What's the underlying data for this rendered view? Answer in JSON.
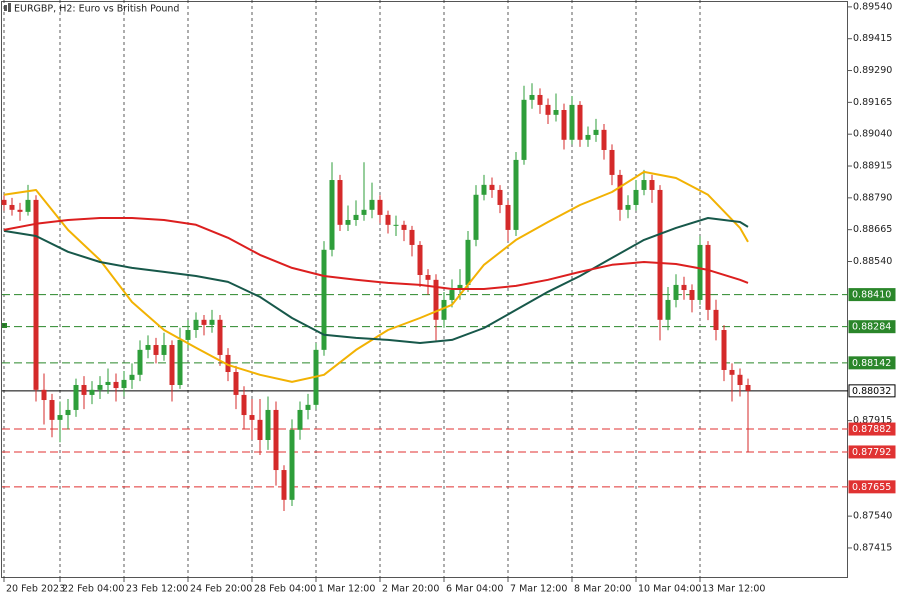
{
  "chart_data": {
    "type": "candlestick",
    "title": "EURGBP, H2:  Euro vs British Pound",
    "up_color": "#2e9e3a",
    "down_color": "#d42a2a",
    "open": [
      0.88782,
      0.88762,
      0.88743,
      0.88735,
      0.88782,
      0.88036,
      0.87996,
      0.87918,
      0.87937,
      0.87957,
      0.88055,
      0.88016,
      0.88036,
      0.88055,
      0.88067,
      0.88043,
      0.88075,
      0.88095,
      0.88193,
      0.88212,
      0.88173,
      0.88212,
      0.88055,
      0.88232,
      0.88271,
      0.88311,
      0.88291,
      0.88311,
      0.88173,
      0.88106,
      0.88016,
      0.87937,
      0.87918,
      0.87839,
      0.87957,
      0.87721,
      0.87604,
      0.87879,
      0.87957,
      0.87977,
      0.88193,
      0.88586,
      0.8886,
      0.88684,
      0.88703,
      0.88723,
      0.88743,
      0.88782,
      0.88723,
      0.88684,
      0.88684,
      0.88664,
      0.88605,
      0.88487,
      0.88468,
      0.88311,
      0.88389,
      0.88428,
      0.88448,
      0.88625,
      0.88802,
      0.88841,
      0.88821,
      0.88762,
      0.88664,
      0.88939,
      0.89175,
      0.89194,
      0.89155,
      0.89116,
      0.89135,
      0.89018,
      0.89155,
      0.89018,
      0.89037,
      0.89057,
      0.88978,
      0.8888,
      0.88743,
      0.88762,
      0.88821,
      0.8886,
      0.88821,
      0.88311,
      0.88389,
      0.88448,
      0.88428,
      0.88389,
      0.88605,
      0.8835,
      0.88271,
      0.88114,
      0.88095,
      0.88055
    ],
    "high": [
      0.888,
      0.8879,
      0.8877,
      0.88841,
      0.888,
      0.881,
      0.8802,
      0.8799,
      0.88,
      0.8808,
      0.8809,
      0.8807,
      0.8809,
      0.8812,
      0.881,
      0.8811,
      0.8814,
      0.8823,
      0.8825,
      0.8824,
      0.8826,
      0.8823,
      0.8828,
      0.8831,
      0.8834,
      0.8833,
      0.8835,
      0.8833,
      0.882,
      0.8813,
      0.8805,
      0.88,
      0.88,
      0.8801,
      0.8799,
      0.8774,
      0.8792,
      0.8799,
      0.8802,
      0.8822,
      0.8862,
      0.8893,
      0.8888,
      0.8876,
      0.8878,
      0.8893,
      0.8885,
      0.888,
      0.8874,
      0.8872,
      0.887,
      0.8868,
      0.8862,
      0.8851,
      0.8849,
      0.8842,
      0.8847,
      0.8851,
      0.8866,
      0.8884,
      0.8888,
      0.8887,
      0.8884,
      0.8878,
      0.8897,
      0.8923,
      0.8924,
      0.8922,
      0.8918,
      0.892,
      0.8916,
      0.8919,
      0.8917,
      0.8907,
      0.891,
      0.8908,
      0.89,
      0.889,
      0.888,
      0.8886,
      0.889,
      0.8888,
      0.8884,
      0.8844,
      0.8849,
      0.8848,
      0.8845,
      0.8864,
      0.8862,
      0.8839,
      0.8829,
      0.8814,
      0.8812,
      0.8808
    ],
    "low": [
      0.8874,
      0.8872,
      0.887,
      0.8872,
      0.8799,
      0.879,
      0.8785,
      0.8783,
      0.8788,
      0.8793,
      0.8796,
      0.8798,
      0.88,
      0.8802,
      0.8799,
      0.8801,
      0.8804,
      0.8807,
      0.8816,
      0.8814,
      0.8815,
      0.8799,
      0.8804,
      0.882,
      0.8824,
      0.8825,
      0.8826,
      0.8813,
      0.8807,
      0.8796,
      0.8788,
      0.8784,
      0.8778,
      0.878,
      0.8766,
      0.8756,
      0.8758,
      0.8784,
      0.8792,
      0.8796,
      0.8817,
      0.8856,
      0.8866,
      0.8866,
      0.8868,
      0.887,
      0.8871,
      0.8869,
      0.8865,
      0.8864,
      0.8862,
      0.8856,
      0.8844,
      0.8841,
      0.8823,
      0.8828,
      0.8836,
      0.8839,
      0.8842,
      0.886,
      0.8878,
      0.8879,
      0.8873,
      0.8862,
      0.8864,
      0.8892,
      0.8914,
      0.8912,
      0.8908,
      0.8909,
      0.8898,
      0.89,
      0.8899,
      0.8899,
      0.8901,
      0.8894,
      0.8884,
      0.887,
      0.8871,
      0.8874,
      0.888,
      0.8877,
      0.8823,
      0.8827,
      0.8836,
      0.8839,
      0.8834,
      0.8837,
      0.8831,
      0.8823,
      0.8807,
      0.8799,
      0.8801,
      0.8779
    ],
    "close": [
      0.88762,
      0.88743,
      0.88735,
      0.88782,
      0.88036,
      0.87996,
      0.87918,
      0.87937,
      0.87957,
      0.88055,
      0.88016,
      0.88036,
      0.88055,
      0.88067,
      0.88043,
      0.88075,
      0.88095,
      0.88193,
      0.88212,
      0.88173,
      0.88212,
      0.88055,
      0.88232,
      0.88271,
      0.88311,
      0.88291,
      0.88311,
      0.88173,
      0.88106,
      0.88016,
      0.87937,
      0.87918,
      0.87839,
      0.87957,
      0.87721,
      0.87604,
      0.87879,
      0.87957,
      0.87977,
      0.88193,
      0.88586,
      0.8886,
      0.88684,
      0.88703,
      0.88723,
      0.88743,
      0.88782,
      0.88723,
      0.88684,
      0.88684,
      0.88664,
      0.88605,
      0.88487,
      0.88468,
      0.88311,
      0.88389,
      0.88428,
      0.88448,
      0.88625,
      0.88802,
      0.88841,
      0.88821,
      0.88762,
      0.88664,
      0.88939,
      0.89175,
      0.89194,
      0.89155,
      0.89116,
      0.89135,
      0.89018,
      0.89155,
      0.89018,
      0.89037,
      0.89057,
      0.88978,
      0.8888,
      0.88743,
      0.88762,
      0.88821,
      0.8886,
      0.88821,
      0.88311,
      0.88389,
      0.88448,
      0.88428,
      0.88389,
      0.88605,
      0.8835,
      0.88271,
      0.88114,
      0.88095,
      0.88055,
      0.88032
    ],
    "lines": [
      {
        "color": "#f2b203",
        "x": [
          0,
          4,
          8,
          12,
          16,
          20,
          24,
          28,
          32,
          36,
          40,
          44,
          48,
          52,
          56,
          60,
          64,
          68,
          72,
          76,
          80,
          84,
          88,
          92,
          93
        ],
        "values": [
          0.88802,
          0.88821,
          0.88664,
          0.88546,
          0.88381,
          0.88271,
          0.88201,
          0.88134,
          0.88095,
          0.88067,
          0.88095,
          0.88193,
          0.88271,
          0.88318,
          0.8837,
          0.88527,
          0.88625,
          0.88695,
          0.88762,
          0.88813,
          0.88892,
          0.88868,
          0.88802,
          0.88672,
          0.88617
        ]
      },
      {
        "color": "#17584a",
        "x": [
          0,
          4,
          8,
          12,
          16,
          20,
          24,
          28,
          32,
          36,
          40,
          44,
          48,
          52,
          56,
          60,
          64,
          68,
          72,
          76,
          80,
          84,
          88,
          92,
          93
        ],
        "values": [
          0.8866,
          0.8864,
          0.88578,
          0.88538,
          0.88515,
          0.88499,
          0.88483,
          0.8846,
          0.88401,
          0.88318,
          0.88252,
          0.8824,
          0.88232,
          0.8822,
          0.88232,
          0.88279,
          0.8835,
          0.88421,
          0.88483,
          0.88554,
          0.88625,
          0.88672,
          0.88711,
          0.88695,
          0.88676
        ]
      },
      {
        "color": "#dc1f1f",
        "x": [
          0,
          4,
          8,
          12,
          16,
          20,
          24,
          28,
          32,
          36,
          40,
          44,
          48,
          52,
          56,
          60,
          64,
          68,
          72,
          76,
          80,
          84,
          88,
          92,
          93
        ],
        "values": [
          0.88664,
          0.88688,
          0.88703,
          0.88711,
          0.88711,
          0.88703,
          0.88684,
          0.88633,
          0.88566,
          0.88515,
          0.88483,
          0.88468,
          0.88456,
          0.88448,
          0.88432,
          0.88432,
          0.88444,
          0.88468,
          0.88499,
          0.88527,
          0.88538,
          0.8853,
          0.88507,
          0.88468,
          0.88456
        ]
      }
    ],
    "levels": [
      {
        "value": 0.8841,
        "label": "0.88410",
        "color": "#2a862a",
        "dashed": true
      },
      {
        "value": 0.88284,
        "color": "#2a862a",
        "dashed": true
      },
      {
        "value": 0.88142,
        "color": "#2a862a",
        "dashed": true
      },
      {
        "value": 0.88032,
        "color": "#000000",
        "dashed": false
      },
      {
        "value": 0.87882,
        "color": "#e03232",
        "dashed": true
      },
      {
        "value": 0.87792,
        "color": "#e03232",
        "dashed": true
      },
      {
        "value": 0.87655,
        "color": "#e03232",
        "dashed": true
      }
    ],
    "ylim": [
      0.87297,
      0.89567
    ],
    "yticks": [
      {
        "value": 0.8954,
        "label": "0.89540"
      },
      0.89415,
      {
        "value": 0.8929,
        "label": "0.89290"
      },
      0.89165,
      {
        "value": 0.8904,
        "label": "0.89040"
      },
      0.88915,
      {
        "value": 0.8879,
        "label": "0.88790"
      },
      0.88665,
      {
        "value": 0.8854,
        "label": "0.88540"
      },
      0.87915,
      {
        "value": 0.8754,
        "label": "0.87540"
      },
      0.87415
    ],
    "xticks": [
      {
        "value": 0,
        "label": "20 Feb 2023"
      },
      {
        "value": 7,
        "label": "22 Feb 04:00"
      },
      {
        "value": 15,
        "label": "23 Feb 12:00"
      },
      {
        "value": 23,
        "label": "24 Feb 20:00"
      },
      {
        "value": 31,
        "label": "28 Feb 04:00"
      },
      {
        "value": 39,
        "label": "1 Mar 12:00"
      },
      {
        "value": 47,
        "label": "2 Mar 20:00"
      },
      {
        "value": 55,
        "label": "6 Mar 04:00"
      },
      {
        "value": 63,
        "label": "7 Mar 12:00"
      },
      {
        "value": 71,
        "label": "8 Mar 20:00"
      },
      {
        "value": 79,
        "label": "10 Mar 04:00"
      },
      {
        "value": 87,
        "label": "13 Mar 12:00"
      }
    ],
    "xgrid": true
  }
}
